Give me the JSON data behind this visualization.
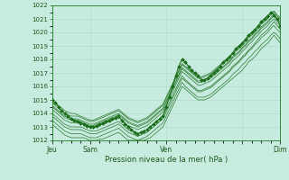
{
  "xlabel": "Pression niveau de la mer( hPa )",
  "ylim": [
    1012,
    1022
  ],
  "yticks": [
    1012,
    1013,
    1014,
    1015,
    1016,
    1017,
    1018,
    1019,
    1020,
    1021,
    1022
  ],
  "bg_color": "#c8ebe0",
  "grid_major_color": "#b0d8c8",
  "grid_minor_color": "#c0e0d4",
  "line_color": "#1a6e1a",
  "n_points": 73,
  "x_day_ticks": [
    0,
    12,
    36,
    60,
    72
  ],
  "x_day_labels": [
    "Jeu",
    "Sam",
    "Ven",
    "",
    "Dim"
  ],
  "main_line_y": [
    1015.0,
    1014.8,
    1014.5,
    1014.2,
    1014.0,
    1013.8,
    1013.6,
    1013.5,
    1013.4,
    1013.3,
    1013.2,
    1013.1,
    1013.0,
    1013.0,
    1013.1,
    1013.2,
    1013.3,
    1013.4,
    1013.5,
    1013.6,
    1013.7,
    1013.8,
    1013.5,
    1013.2,
    1013.0,
    1012.8,
    1012.6,
    1012.5,
    1012.6,
    1012.7,
    1012.8,
    1013.0,
    1013.2,
    1013.4,
    1013.6,
    1013.8,
    1014.5,
    1015.2,
    1016.0,
    1016.8,
    1017.5,
    1018.0,
    1017.8,
    1017.5,
    1017.2,
    1017.0,
    1016.8,
    1016.5,
    1016.5,
    1016.6,
    1016.8,
    1017.0,
    1017.2,
    1017.5,
    1017.8,
    1018.0,
    1018.2,
    1018.5,
    1018.8,
    1019.0,
    1019.2,
    1019.5,
    1019.8,
    1020.0,
    1020.2,
    1020.5,
    1020.8,
    1021.0,
    1021.2,
    1021.5,
    1021.3,
    1021.0,
    1020.5
  ],
  "ensemble_lines": [
    [
      1013.2,
      1013.0,
      1012.8,
      1012.6,
      1012.4,
      1012.3,
      1012.2,
      1012.2,
      1012.2,
      1012.2,
      1012.2,
      1012.1,
      1012.0,
      1012.0,
      1012.0,
      1012.1,
      1012.1,
      1012.2,
      1012.3,
      1012.4,
      1012.5,
      1012.6,
      1012.4,
      1012.2,
      1012.0,
      1012.0,
      1012.0,
      1012.0,
      1012.0,
      1012.0,
      1012.1,
      1012.2,
      1012.4,
      1012.6,
      1012.8,
      1013.0,
      1013.5,
      1014.0,
      1014.5,
      1015.0,
      1015.5,
      1016.0,
      1015.8,
      1015.6,
      1015.4,
      1015.2,
      1015.0,
      1015.0,
      1015.0,
      1015.1,
      1015.2,
      1015.4,
      1015.6,
      1015.8,
      1016.0,
      1016.2,
      1016.4,
      1016.6,
      1016.8,
      1017.0,
      1017.2,
      1017.5,
      1017.8,
      1018.0,
      1018.2,
      1018.5,
      1018.8,
      1019.0,
      1019.2,
      1019.5,
      1019.8,
      1019.5,
      1019.2
    ],
    [
      1013.5,
      1013.3,
      1013.1,
      1012.9,
      1012.7,
      1012.6,
      1012.5,
      1012.5,
      1012.5,
      1012.5,
      1012.4,
      1012.3,
      1012.2,
      1012.2,
      1012.2,
      1012.3,
      1012.4,
      1012.5,
      1012.6,
      1012.7,
      1012.8,
      1012.9,
      1012.7,
      1012.5,
      1012.3,
      1012.2,
      1012.1,
      1012.0,
      1012.1,
      1012.2,
      1012.3,
      1012.5,
      1012.7,
      1012.9,
      1013.1,
      1013.3,
      1013.8,
      1014.3,
      1014.8,
      1015.3,
      1015.8,
      1016.3,
      1016.0,
      1015.8,
      1015.6,
      1015.4,
      1015.2,
      1015.2,
      1015.2,
      1015.3,
      1015.4,
      1015.6,
      1015.8,
      1016.0,
      1016.2,
      1016.4,
      1016.6,
      1016.9,
      1017.1,
      1017.3,
      1017.6,
      1017.8,
      1018.1,
      1018.3,
      1018.6,
      1018.8,
      1019.1,
      1019.3,
      1019.5,
      1019.8,
      1020.0,
      1019.8,
      1019.5
    ],
    [
      1014.0,
      1013.8,
      1013.6,
      1013.4,
      1013.2,
      1013.1,
      1013.0,
      1013.0,
      1013.0,
      1013.0,
      1012.9,
      1012.8,
      1012.7,
      1012.7,
      1012.7,
      1012.8,
      1012.9,
      1013.0,
      1013.1,
      1013.2,
      1013.3,
      1013.4,
      1013.2,
      1013.0,
      1012.8,
      1012.7,
      1012.6,
      1012.5,
      1012.6,
      1012.7,
      1012.8,
      1013.0,
      1013.2,
      1013.4,
      1013.6,
      1013.8,
      1014.3,
      1014.8,
      1015.3,
      1015.8,
      1016.3,
      1016.8,
      1016.5,
      1016.3,
      1016.1,
      1015.9,
      1015.7,
      1015.7,
      1015.8,
      1015.9,
      1016.0,
      1016.2,
      1016.4,
      1016.6,
      1016.8,
      1017.0,
      1017.2,
      1017.5,
      1017.7,
      1017.9,
      1018.2,
      1018.4,
      1018.7,
      1018.9,
      1019.2,
      1019.5,
      1019.8,
      1020.0,
      1020.2,
      1020.5,
      1020.8,
      1020.5,
      1020.2
    ],
    [
      1014.3,
      1014.1,
      1013.9,
      1013.7,
      1013.5,
      1013.4,
      1013.3,
      1013.3,
      1013.3,
      1013.3,
      1013.2,
      1013.1,
      1013.0,
      1013.0,
      1013.0,
      1013.1,
      1013.2,
      1013.3,
      1013.4,
      1013.5,
      1013.6,
      1013.7,
      1013.5,
      1013.3,
      1013.1,
      1013.0,
      1012.9,
      1012.8,
      1012.9,
      1013.0,
      1013.1,
      1013.3,
      1013.5,
      1013.7,
      1013.9,
      1014.1,
      1014.6,
      1015.1,
      1015.6,
      1016.1,
      1016.6,
      1017.1,
      1016.9,
      1016.7,
      1016.5,
      1016.3,
      1016.1,
      1016.1,
      1016.2,
      1016.3,
      1016.4,
      1016.6,
      1016.8,
      1017.0,
      1017.2,
      1017.4,
      1017.6,
      1017.9,
      1018.1,
      1018.3,
      1018.6,
      1018.8,
      1019.1,
      1019.3,
      1019.6,
      1019.8,
      1020.1,
      1020.3,
      1020.5,
      1020.8,
      1021.0,
      1020.7,
      1020.5
    ],
    [
      1014.6,
      1014.4,
      1014.2,
      1014.0,
      1013.8,
      1013.7,
      1013.6,
      1013.6,
      1013.6,
      1013.5,
      1013.4,
      1013.3,
      1013.2,
      1013.2,
      1013.3,
      1013.4,
      1013.5,
      1013.6,
      1013.7,
      1013.8,
      1013.9,
      1014.0,
      1013.8,
      1013.6,
      1013.4,
      1013.3,
      1013.2,
      1013.1,
      1013.2,
      1013.3,
      1013.4,
      1013.6,
      1013.8,
      1014.0,
      1014.2,
      1014.4,
      1014.9,
      1015.4,
      1015.9,
      1016.4,
      1016.9,
      1017.4,
      1017.2,
      1017.0,
      1016.8,
      1016.6,
      1016.4,
      1016.4,
      1016.5,
      1016.6,
      1016.7,
      1016.9,
      1017.1,
      1017.3,
      1017.5,
      1017.7,
      1017.9,
      1018.2,
      1018.4,
      1018.6,
      1018.9,
      1019.1,
      1019.4,
      1019.6,
      1019.9,
      1020.1,
      1020.4,
      1020.6,
      1020.8,
      1021.1,
      1021.3,
      1021.0,
      1020.8
    ],
    [
      1014.8,
      1014.6,
      1014.4,
      1014.2,
      1014.0,
      1013.9,
      1013.8,
      1013.8,
      1013.8,
      1013.7,
      1013.6,
      1013.5,
      1013.4,
      1013.4,
      1013.5,
      1013.6,
      1013.7,
      1013.8,
      1013.9,
      1014.0,
      1014.1,
      1014.2,
      1014.0,
      1013.8,
      1013.6,
      1013.5,
      1013.4,
      1013.3,
      1013.4,
      1013.5,
      1013.6,
      1013.8,
      1014.0,
      1014.2,
      1014.4,
      1014.6,
      1015.1,
      1015.6,
      1016.1,
      1016.6,
      1017.1,
      1017.6,
      1017.4,
      1017.2,
      1017.0,
      1016.8,
      1016.6,
      1016.6,
      1016.7,
      1016.8,
      1016.9,
      1017.1,
      1017.3,
      1017.5,
      1017.7,
      1017.9,
      1018.1,
      1018.4,
      1018.6,
      1018.8,
      1019.1,
      1019.3,
      1019.6,
      1019.8,
      1020.1,
      1020.3,
      1020.6,
      1020.8,
      1021.0,
      1021.3,
      1021.5,
      1021.2,
      1021.0
    ],
    [
      1015.0,
      1014.8,
      1014.6,
      1014.4,
      1014.2,
      1014.1,
      1014.0,
      1014.0,
      1013.9,
      1013.8,
      1013.7,
      1013.6,
      1013.5,
      1013.5,
      1013.6,
      1013.7,
      1013.8,
      1013.9,
      1014.0,
      1014.1,
      1014.2,
      1014.3,
      1014.1,
      1013.9,
      1013.7,
      1013.6,
      1013.5,
      1013.4,
      1013.5,
      1013.6,
      1013.7,
      1013.9,
      1014.1,
      1014.3,
      1014.5,
      1014.7,
      1015.2,
      1015.7,
      1016.2,
      1016.7,
      1017.2,
      1017.7,
      1017.5,
      1017.3,
      1017.1,
      1016.9,
      1016.7,
      1016.7,
      1016.8,
      1016.9,
      1017.0,
      1017.2,
      1017.4,
      1017.6,
      1017.8,
      1018.0,
      1018.2,
      1018.5,
      1018.7,
      1018.9,
      1019.2,
      1019.4,
      1019.7,
      1019.9,
      1020.2,
      1020.4,
      1020.7,
      1020.9,
      1021.1,
      1021.4,
      1021.6,
      1021.3,
      1021.1
    ],
    [
      1013.8,
      1013.6,
      1013.4,
      1013.2,
      1013.0,
      1012.9,
      1012.8,
      1012.8,
      1012.8,
      1012.8,
      1012.7,
      1012.6,
      1012.5,
      1012.5,
      1012.5,
      1012.6,
      1012.7,
      1012.8,
      1012.9,
      1013.0,
      1013.1,
      1013.2,
      1013.0,
      1012.8,
      1012.6,
      1012.5,
      1012.4,
      1012.3,
      1012.4,
      1012.5,
      1012.6,
      1012.8,
      1013.0,
      1013.2,
      1013.4,
      1013.6,
      1014.1,
      1014.6,
      1015.1,
      1015.6,
      1016.1,
      1016.6,
      1016.4,
      1016.2,
      1016.0,
      1015.8,
      1015.6,
      1015.6,
      1015.7,
      1015.8,
      1015.9,
      1016.1,
      1016.3,
      1016.5,
      1016.7,
      1016.9,
      1017.1,
      1017.4,
      1017.6,
      1017.8,
      1018.1,
      1018.3,
      1018.6,
      1018.8,
      1019.1,
      1019.3,
      1019.6,
      1019.8,
      1020.0,
      1020.3,
      1020.5,
      1020.2,
      1020.0
    ],
    [
      1014.5,
      1014.3,
      1014.1,
      1013.9,
      1013.7,
      1013.6,
      1013.5,
      1013.5,
      1013.5,
      1013.4,
      1013.3,
      1013.2,
      1013.1,
      1013.1,
      1013.2,
      1013.3,
      1013.4,
      1013.5,
      1013.6,
      1013.7,
      1013.8,
      1013.9,
      1013.7,
      1013.5,
      1013.3,
      1013.2,
      1013.1,
      1013.0,
      1013.1,
      1013.2,
      1013.3,
      1013.5,
      1013.7,
      1013.9,
      1014.1,
      1014.3,
      1014.8,
      1015.3,
      1015.8,
      1016.3,
      1016.8,
      1017.3,
      1017.1,
      1016.9,
      1016.7,
      1016.5,
      1016.3,
      1016.3,
      1016.4,
      1016.5,
      1016.6,
      1016.8,
      1017.0,
      1017.2,
      1017.4,
      1017.6,
      1017.8,
      1018.1,
      1018.3,
      1018.5,
      1018.8,
      1019.0,
      1019.3,
      1019.5,
      1019.8,
      1020.0,
      1020.3,
      1020.5,
      1020.7,
      1021.0,
      1021.2,
      1020.9,
      1020.7
    ]
  ]
}
